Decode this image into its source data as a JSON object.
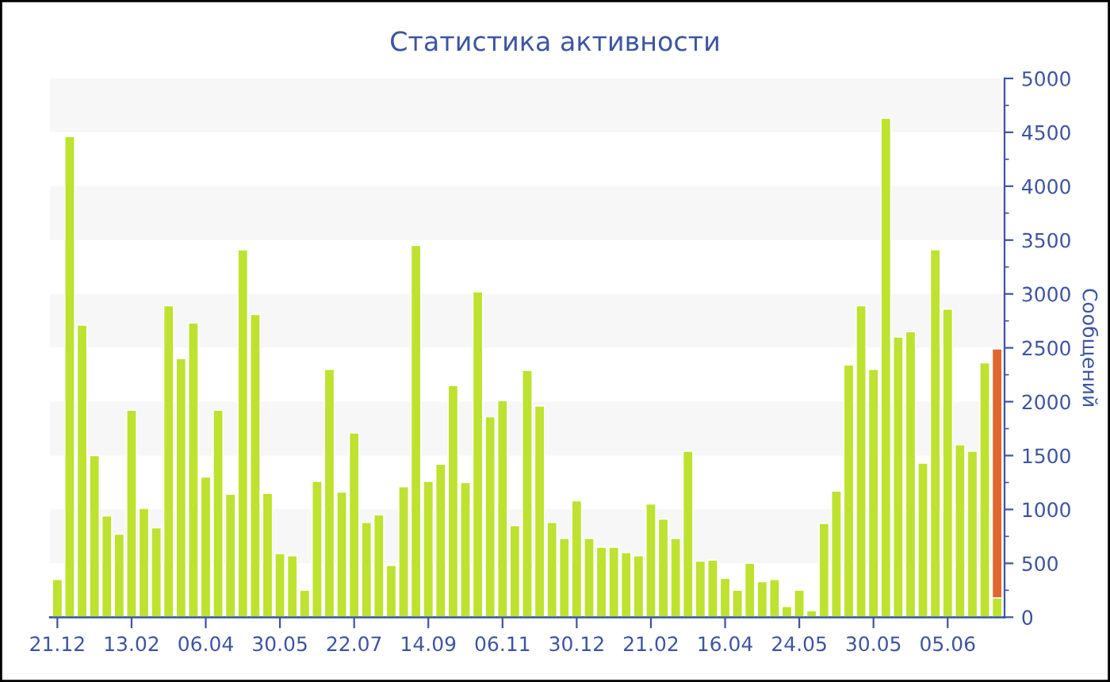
{
  "chart_data": {
    "type": "bar",
    "title": "Статистика активности",
    "y2label": "Сообщений",
    "stacked": true,
    "categories": [
      "21.12",
      null,
      null,
      null,
      null,
      null,
      "13.02",
      null,
      null,
      null,
      null,
      null,
      "06.04",
      null,
      null,
      null,
      null,
      null,
      "30.05",
      null,
      null,
      null,
      null,
      null,
      "22.07",
      null,
      null,
      null,
      null,
      null,
      "14.09",
      null,
      null,
      null,
      null,
      null,
      "06.11",
      null,
      null,
      null,
      null,
      null,
      "30.12",
      null,
      null,
      null,
      null,
      null,
      "21.02",
      null,
      null,
      null,
      null,
      null,
      "16.04",
      null,
      null,
      null,
      null,
      null,
      "24.05",
      null,
      null,
      null,
      null,
      null,
      "30.05",
      null,
      null,
      null,
      null,
      null,
      "05.06",
      null,
      null,
      null,
      null
    ],
    "series": [
      {
        "color": "#bde22f",
        "axis": "y2",
        "values": [
          350,
          4460,
          2710,
          1500,
          940,
          770,
          1920,
          1010,
          830,
          2890,
          2400,
          2730,
          1300,
          1920,
          1140,
          3410,
          2810,
          1150,
          590,
          570,
          250,
          1260,
          2300,
          1160,
          1710,
          880,
          950,
          480,
          1210,
          3450,
          1260,
          1420,
          2150,
          1250,
          3020,
          1860,
          2010,
          850,
          2290,
          1960,
          880,
          730,
          1080,
          730,
          650,
          650,
          600,
          570,
          1050,
          910,
          730,
          1540,
          520,
          530,
          360,
          250,
          500,
          330,
          350,
          100,
          250,
          60,
          870,
          1170,
          2340,
          2890,
          2300,
          4630,
          2600,
          2650,
          1430,
          3410,
          2860,
          1600,
          1540,
          2360,
          180
        ]
      },
      {
        "color": "#e0662f",
        "axis": "y2",
        "values": [
          null,
          null,
          null,
          null,
          null,
          null,
          null,
          null,
          null,
          null,
          null,
          null,
          null,
          null,
          null,
          null,
          null,
          null,
          null,
          null,
          null,
          null,
          null,
          null,
          null,
          null,
          null,
          null,
          null,
          null,
          null,
          null,
          null,
          null,
          null,
          null,
          null,
          null,
          null,
          null,
          null,
          null,
          null,
          null,
          null,
          null,
          null,
          null,
          null,
          null,
          null,
          null,
          null,
          null,
          null,
          null,
          null,
          null,
          null,
          null,
          null,
          null,
          null,
          null,
          null,
          null,
          null,
          null,
          null,
          null,
          null,
          null,
          null,
          null,
          null,
          null,
          2310
        ]
      }
    ],
    "y2lim": [
      0,
      5000
    ],
    "y2ticks": [
      0,
      500,
      1000,
      1500,
      2000,
      2500,
      3000,
      3500,
      4000,
      4500,
      5000
    ],
    "bands": [
      {
        "axis": "y2",
        "from": 500,
        "to": 1000,
        "color": "#f7f7f7"
      },
      {
        "axis": "y2",
        "from": 1500,
        "to": 2000,
        "color": "#f7f7f7"
      },
      {
        "axis": "y2",
        "from": 2500,
        "to": 3000,
        "color": "#f7f7f7"
      },
      {
        "axis": "y2",
        "from": 3500,
        "to": 4000,
        "color": "#f7f7f7"
      },
      {
        "axis": "y2",
        "from": 4500,
        "to": 5000,
        "color": "#f7f7f7"
      }
    ],
    "grid": false,
    "legend": false
  }
}
